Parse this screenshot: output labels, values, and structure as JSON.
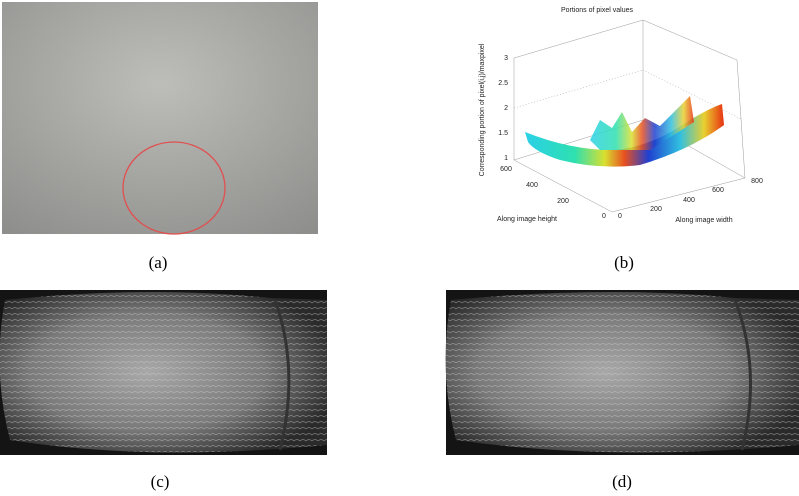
{
  "panels": [
    {
      "caption": "(a)"
    },
    {
      "caption": "(b)"
    },
    {
      "caption": "(c)"
    },
    {
      "caption": "(d)"
    }
  ],
  "plot": {
    "title": "Portions of pixel values",
    "z_label": "Corresponding portion of pixel(i,j)/maxpixel",
    "x_label": "Along image width",
    "y_label": "Along image height",
    "z_ticks": [
      3,
      2.5,
      2,
      1.5,
      1
    ],
    "y_ticks": [
      600,
      400,
      200,
      0
    ],
    "x_ticks": [
      0,
      200,
      400,
      600,
      800
    ]
  }
}
